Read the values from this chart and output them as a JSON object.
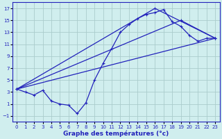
{
  "xlabel": "Graphe des températures (°c)",
  "bg_color": "#d0eeee",
  "line_color": "#2222bb",
  "grid_color": "#aacccc",
  "xlim": [
    -0.5,
    23.5
  ],
  "ylim": [
    -2,
    18
  ],
  "xticks": [
    0,
    1,
    2,
    3,
    4,
    5,
    6,
    7,
    8,
    9,
    10,
    11,
    12,
    13,
    14,
    15,
    16,
    17,
    18,
    19,
    20,
    21,
    22,
    23
  ],
  "yticks": [
    -1,
    1,
    3,
    5,
    7,
    9,
    11,
    13,
    15,
    17
  ],
  "line1_x": [
    0,
    1,
    2,
    3,
    4,
    5,
    6,
    7,
    8,
    9,
    10,
    11,
    12,
    13,
    14,
    15,
    16,
    17,
    18,
    19,
    20,
    21,
    22,
    23
  ],
  "line1_y": [
    3.5,
    3.0,
    2.5,
    3.3,
    1.5,
    1.0,
    0.8,
    -0.6,
    1.2,
    5.0,
    7.8,
    10.3,
    13.0,
    14.3,
    15.3,
    16.0,
    16.3,
    16.8,
    14.8,
    14.0,
    12.5,
    11.5,
    12.0,
    12.0
  ],
  "line2_x": [
    0,
    23
  ],
  "line2_y": [
    3.5,
    12.0
  ],
  "line3_x": [
    0,
    16,
    23
  ],
  "line3_y": [
    3.5,
    17.0,
    12.0
  ],
  "line4_x": [
    0,
    19,
    23
  ],
  "line4_y": [
    3.5,
    15.0,
    12.0
  ]
}
